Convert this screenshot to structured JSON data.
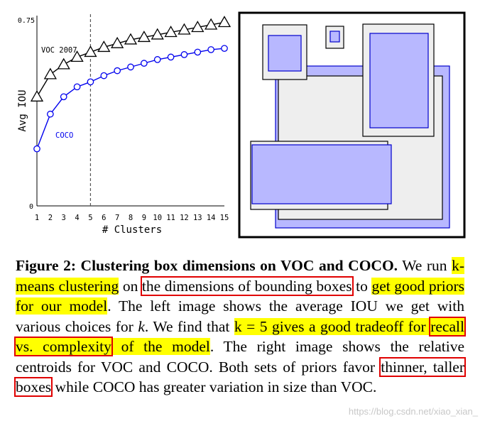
{
  "chart_data": {
    "type": "line",
    "title": "",
    "xlabel": "# Clusters",
    "ylabel": "Avg IOU",
    "x": [
      1,
      2,
      3,
      4,
      5,
      6,
      7,
      8,
      9,
      10,
      11,
      12,
      13,
      14,
      15
    ],
    "xlim": [
      1,
      15
    ],
    "ylim": [
      0,
      0.75
    ],
    "ytick_labels": [
      "0",
      "0.75"
    ],
    "xtick_labels": [
      "1",
      "2",
      "3",
      "4",
      "5",
      "6",
      "7",
      "8",
      "9",
      "10",
      "11",
      "12",
      "13",
      "14",
      "15"
    ],
    "marker_line_x": 5,
    "series": [
      {
        "name": "VOC 2007",
        "marker": "triangle",
        "color": "#000000",
        "values": [
          0.44,
          0.53,
          0.57,
          0.6,
          0.62,
          0.64,
          0.655,
          0.67,
          0.68,
          0.69,
          0.7,
          0.71,
          0.72,
          0.73,
          0.74
        ]
      },
      {
        "name": "COCO",
        "marker": "circle",
        "color": "#0000ee",
        "values": [
          0.23,
          0.37,
          0.44,
          0.48,
          0.5,
          0.525,
          0.545,
          0.56,
          0.575,
          0.59,
          0.6,
          0.61,
          0.62,
          0.63,
          0.635
        ]
      }
    ]
  },
  "centroids": {
    "coco_fill": "#b8b8ff",
    "coco_stroke": "#0000cc",
    "voc_fill": "#eeeeee",
    "voc_stroke": "#000000"
  },
  "caption": {
    "label": "Figure 2:",
    "title": "Clustering box dimensions on VOC and COCO.",
    "t1": " We run ",
    "h1": "k-means clustering",
    "t2": " on ",
    "b1": "the dimensions of bounding boxes",
    "t3": " to ",
    "h2": "get good priors for our model",
    "t4": ". The left image shows the average IOU we get with various choices for ",
    "m1": "k",
    "t5": ". We find that ",
    "h3": "k = 5 gives a good tradeoff for ",
    "b2": "recall vs.  complexity",
    "h4": " of the model",
    "t6": ". The right image shows the relative centroids for VOC and COCO. Both sets of priors favor ",
    "b3": "thinner, taller boxes",
    "t7": " while COCO has greater variation in size than VOC."
  },
  "watermark": "https://blog.csdn.net/xiao_xian_"
}
